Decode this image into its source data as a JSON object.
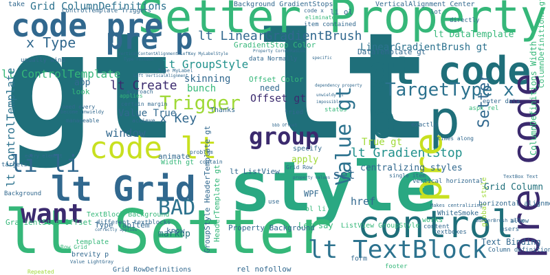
{
  "palette": {
    "teal_dark": "#1f6f7a",
    "teal": "#21918c",
    "green": "#35b779",
    "lime": "#9fd937",
    "yellow_green": "#c8e020",
    "purple": "#3b2a6e",
    "indigo": "#443983",
    "blue": "#31688e",
    "blue_mid": "#2c728e"
  },
  "words": {
    "gt_lt": "gt lt",
    "setter_property": "Setter Property",
    "style": "style",
    "lt_setter": "lt Setter",
    "code_pre": "code pre",
    "pre_p": "pre p",
    "gt_code": "gt code",
    "p_p": "p p",
    "code_lt": "code lt",
    "lt_grid": "lt Grid",
    "control": "control",
    "lt_textblock": "lt TextBlock",
    "want": "want",
    "bad": "BAD",
    "value_gt": "Value gt",
    "group": "group",
    "trigger": "Trigger",
    "targettype_x": "TargetType x",
    "lt_groupstyle": "lt GroupStyle",
    "x_key": "x Key",
    "li_li": "li li",
    "x_type": "x Type",
    "lt_create": "lt Create",
    "lt_lineargradientbrush": "lt LinearGradientBrush",
    "lineargradientbrush_gt": "LinearGradientBrush gt",
    "lt_gradientstop": "lt GradientStop",
    "grid_columndefinitions": "Grid ColumnDefinitions",
    "setter_small": "Setter",
    "pre_v": "pre",
    "precode_v": "pre code",
    "lt_controltemplate": "lt ControlTemplate",
    "window": "window",
    "value_true": "Value True",
    "skinning": "skinning",
    "bunch": "bunch",
    "app": "app",
    "look": "look",
    "need": "need",
    "offset_gt": "Offset gt",
    "offset_color": "Offset Color",
    "gradientstop_color": "GradientStop Color",
    "datatemplate_gt": "DataTemplate gt",
    "lt_datatemplate": "lt DataTemplate",
    "true_gt": "True gt",
    "set": "set",
    "apply": "apply",
    "centralizing_styles": "centralizing styles",
    "grid_column": "Grid Column",
    "text_binding": "Text Binding",
    "href": "href",
    "wpf": "WPF",
    "ol_li": "ol li",
    "let_say": "Let say",
    "property_background": "Property Background",
    "lt_listview": "lt ListView",
    "markup": "markup",
    "know": "know",
    "rel_nofollow": "rel nofollow",
    "listview_groupstyle": "ListView GroupStyle",
    "animate": "animate",
    "width_gt": "Width gt",
    "type_tabitem": "Type TabItem",
    "gradientstop_offset": "GradientStop Offset",
    "template": "template",
    "brevity_p": "brevity p",
    "grid_rowdefinitions": "Grid RowDefinitions",
    "textblock_background": "TextBlock Background",
    "different_textblocks": "different textblocks",
    "groupstyle_headertemplate_gt": "GroupStyle HeaderTemplate gt",
    "headertemplate_gt": "HeaderTemplate gt",
    "footer": "footer",
    "form": "form",
    "whitesmoke": "WhiteSmoke",
    "horizontal_alignment": "horizontal alignment",
    "vertical_horizontal": "vertical horizontal",
    "columndefinitions_width": "ColumnDefinitions Width",
    "columndefinitions_gt": "ColumnDefinitions gt",
    "background_gradientstops": "Background GradientStops",
    "verticalalignment_center": "VerticalAlignment Center",
    "gridcolumntemplate_triggers": "ControlTemplate Triggers",
    "item_contained": "item contained",
    "eliminated": "eliminated",
    "code_x": "code x",
    "li_ol": "li ol",
    "take": "take",
    "data_normally": "data Normally",
    "offset_color_small": "Offset Color",
    "thanks": "Thanks",
    "status": "status",
    "times_along": "times along",
    "exactly": "exactly",
    "enter_data": "enter data",
    "aspx_rel": "aspx rel",
    "tried": "tried",
    "users": "users",
    "allow": "allow",
    "works": "works",
    "content": "content",
    "textboxes": "textboxes",
    "global_style": "global style",
    "single_item": "single item",
    "makes_centralizing": "Makes centralizing",
    "borderbrush_value": "BorderBrush Value",
    "column_definitions": "Column definitions",
    "targets": "targets",
    "background": "Background",
    "usually_wind": "usually wind",
    "approach": "approach",
    "certain_margin": "certain margin",
    "applies": "applies",
    "achieve": "achieve",
    "need_every": "need every",
    "become_unwieldy": "become unwieldy",
    "manageable": "manageable",
    "problem": "problem",
    "contain": "contain",
    "specify": "specify",
    "use": "use",
    "every_element": "every element",
    "repeated": "Repeated",
    "value_lightgray": "Value LightGray",
    "row_grid": "Row Grid",
    "grid_row": "Grid Row",
    "lt_textblock_small": "lt TextBlock",
    "type_mylabel": "Type MyLabel",
    "left_verticalalignment": "Left VerticalAlignment",
    "verticalcontentalignment_left": "VerticalContentAlignment Left",
    "type_textbox": "Type TextBox",
    "key_mylabelstyle": "Key MyLabelStyle",
    "property_cornerradius": "Property CornerRadius",
    "dependency_property": "dependency property",
    "unwieldy_li": "unwieldy li",
    "impossible": "impossible",
    "bbb_offset": "bbb Offset",
    "sorted": "sorted",
    "lot": "lot",
    "directly": "directly",
    "correctly_applies": "correctly applies",
    "property_values": "property values",
    "textbox_text": "TextBox Text",
    "look_small": "look",
    "specific": "specific"
  }
}
